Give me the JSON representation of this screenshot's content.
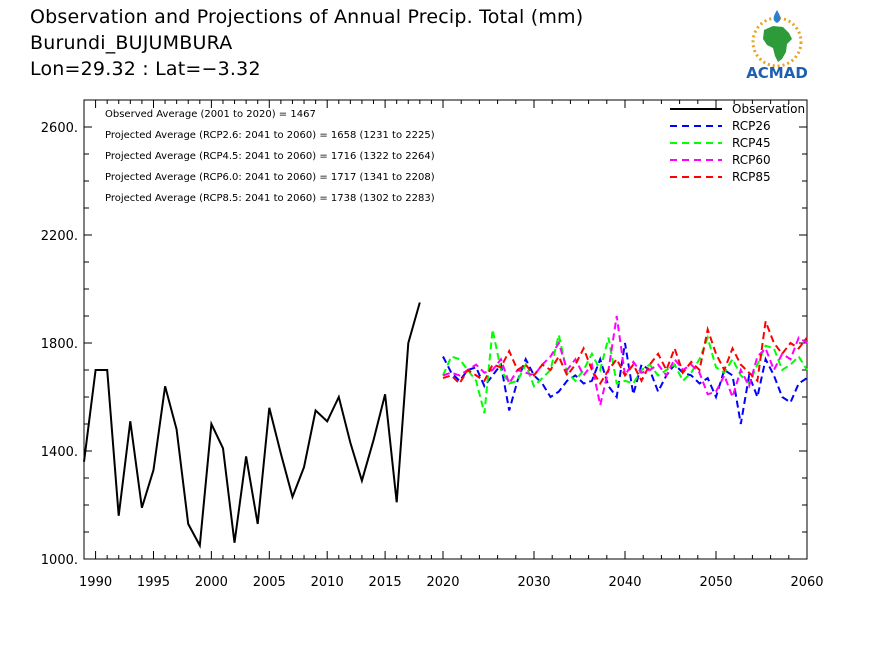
{
  "header": {
    "title": "Observation and Projections of Annual Precip. Total (mm)",
    "location": "Burundi_BUJUMBURA",
    "coords": "Lon=29.32 : Lat=−3.32"
  },
  "logo": {
    "text": "ACMAD"
  },
  "annotations": [
    "Observed Average (2001 to 2020) = 1467",
    "Projected Average (RCP2.6: 2041 to 2060) = 1658 (1231 to 2225)",
    "Projected Average (RCP4.5: 2041 to 2060) = 1716 (1322 to 2264)",
    "Projected Average (RCP6.0: 2041 to 2060) = 1717 (1341 to 2208)",
    "Projected Average (RCP8.5: 2041 to 2060) = 1738 (1302 to 2283)"
  ],
  "chart_data": {
    "type": "line",
    "xlim": [
      1989,
      2060
    ],
    "ylim": [
      1000,
      2700
    ],
    "x_ticks": [
      1990,
      1995,
      2000,
      2005,
      2010,
      2015,
      2020,
      2030,
      2040,
      2050,
      2060
    ],
    "y_ticks": [
      1000,
      1400,
      1800,
      2200,
      2600
    ],
    "y_tick_labels": [
      "1000.",
      "1400.",
      "1800.",
      "2200.",
      "2600."
    ],
    "legend_position": "top-right",
    "series": [
      {
        "name": "Observation",
        "color": "#000000",
        "dash": "solid",
        "x": [
          1989,
          1990,
          1991,
          1992,
          1993,
          1994,
          1995,
          1996,
          1997,
          1998,
          1999,
          2000,
          2001,
          2002,
          2003,
          2004,
          2005,
          2006,
          2007,
          2008,
          2009,
          2010,
          2011,
          2012,
          2013,
          2014,
          2015,
          2016,
          2017,
          2018,
          2019,
          2020
        ],
        "values": [
          1360,
          1700,
          1700,
          1160,
          1510,
          1190,
          1330,
          1640,
          1480,
          1130,
          1050,
          1500,
          1410,
          1060,
          1380,
          1130,
          1560,
          1390,
          1230,
          1340,
          1550,
          1510,
          1600,
          1430,
          1290,
          1440,
          1610,
          1210,
          1800,
          1950,
          null,
          null
        ]
      },
      {
        "name": "RCP26",
        "color": "#0000ff",
        "dash": "dashed",
        "x_start": 2020,
        "values": [
          1750,
          1690,
          1660,
          1700,
          1710,
          1640,
          1680,
          1720,
          1550,
          1660,
          1740,
          1680,
          1650,
          1600,
          1620,
          1660,
          1680,
          1650,
          1660,
          1740,
          1640,
          1600,
          1800,
          1610,
          1720,
          1700,
          1620,
          1680,
          1720,
          1690,
          1680,
          1650,
          1670,
          1600,
          1700,
          1680,
          1500,
          1680,
          1600,
          1740,
          1680,
          1600,
          1580,
          1650,
          1670
        ]
      },
      {
        "name": "RCP45",
        "color": "#00ff00",
        "dash": "dashed",
        "x_start": 2020,
        "values": [
          1680,
          1750,
          1740,
          1700,
          1660,
          1540,
          1850,
          1700,
          1650,
          1660,
          1720,
          1640,
          1670,
          1700,
          1830,
          1690,
          1660,
          1700,
          1760,
          1700,
          1820,
          1650,
          1660,
          1650,
          1700,
          1720,
          1680,
          1700,
          1720,
          1660,
          1690,
          1740,
          1820,
          1710,
          1690,
          1740,
          1680,
          1650,
          1720,
          1790,
          1780,
          1700,
          1720,
          1750,
          1700
        ]
      },
      {
        "name": "RCP60",
        "color": "#ff00ff",
        "dash": "dashed",
        "x_start": 2020,
        "values": [
          1680,
          1690,
          1680,
          1700,
          1720,
          1690,
          1700,
          1740,
          1650,
          1700,
          1690,
          1680,
          1720,
          1750,
          1800,
          1700,
          1740,
          1680,
          1720,
          1570,
          1700,
          1900,
          1680,
          1730,
          1690,
          1700,
          1720,
          1680,
          1740,
          1700,
          1720,
          1690,
          1610,
          1620,
          1680,
          1600,
          1700,
          1640,
          1750,
          1780,
          1700,
          1760,
          1740,
          1820,
          1800
        ]
      },
      {
        "name": "RCP85",
        "color": "#ff0000",
        "dash": "dashed",
        "x_start": 2020,
        "values": [
          1670,
          1680,
          1650,
          1700,
          1680,
          1660,
          1720,
          1710,
          1770,
          1700,
          1720,
          1680,
          1720,
          1700,
          1750,
          1680,
          1720,
          1780,
          1700,
          1650,
          1700,
          1740,
          1680,
          1720,
          1660,
          1720,
          1760,
          1700,
          1780,
          1690,
          1730,
          1700,
          1850,
          1760,
          1700,
          1780,
          1720,
          1690,
          1660,
          1880,
          1800,
          1760,
          1800,
          1780,
          1820
        ]
      }
    ]
  }
}
